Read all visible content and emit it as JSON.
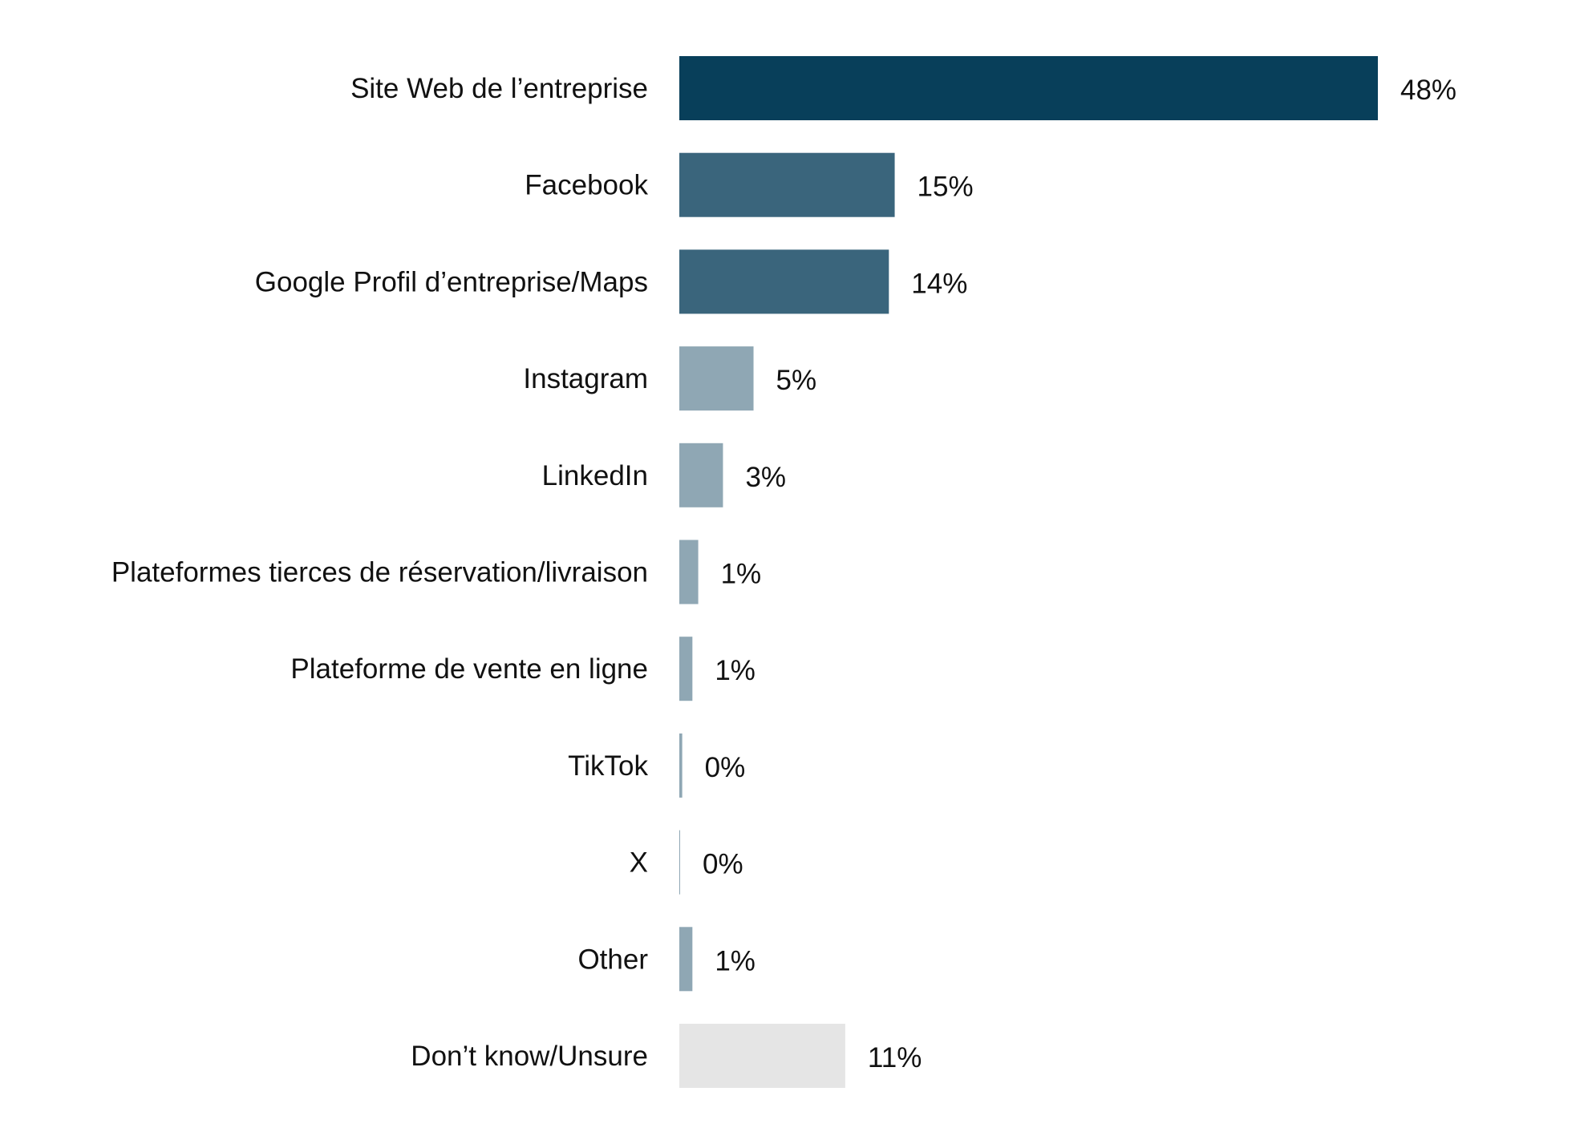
{
  "chart_data": {
    "type": "bar",
    "orientation": "horizontal",
    "title": "",
    "xlabel": "",
    "ylabel": "",
    "xlim": [
      0,
      48
    ],
    "grid": false,
    "legend": "none",
    "categories": [
      "Site Web de l’entreprise",
      "Facebook",
      "Google Profil d’entreprise/Maps",
      "Instagram",
      "LinkedIn",
      "Plateformes tierces de réservation/livraison",
      "Plateforme de vente en ligne",
      "TikTok",
      "X",
      "Other",
      "Don’t know/Unsure"
    ],
    "values": [
      48,
      14.8,
      14.4,
      5.1,
      3.0,
      1.3,
      0.9,
      0.2,
      0.05,
      0.9,
      11.4
    ],
    "data_labels": [
      "48%",
      "15%",
      "14%",
      "5%",
      "3%",
      "1%",
      "1%",
      "0%",
      "0%",
      "1%",
      "11%"
    ],
    "colors": [
      "#083f5a",
      "#3a657c",
      "#3a657c",
      "#8fa7b4",
      "#8fa7b4",
      "#8fa7b4",
      "#8fa7b4",
      "#8fa7b4",
      "#8fa7b4",
      "#8fa7b4",
      "#e5e5e5"
    ]
  }
}
